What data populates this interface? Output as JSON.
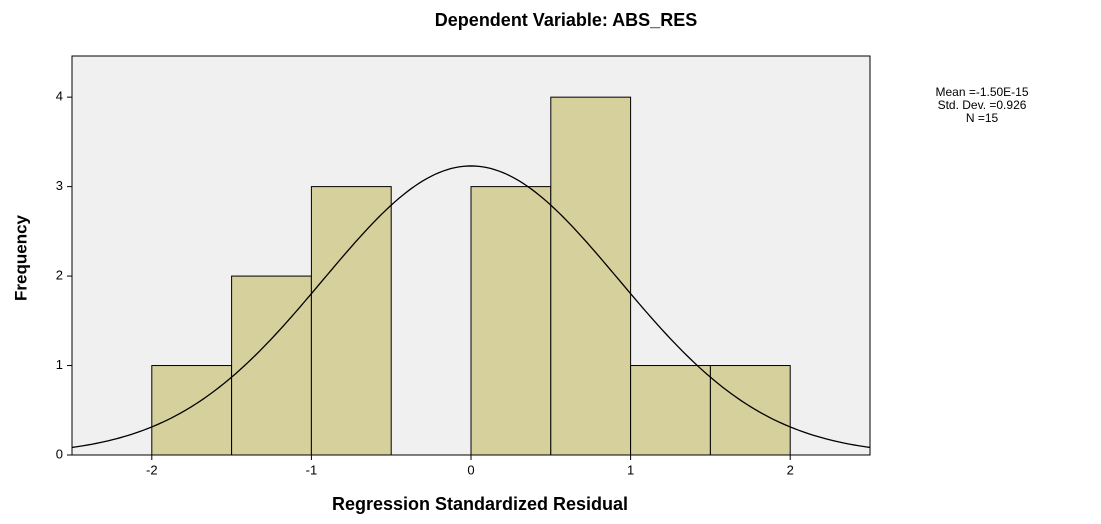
{
  "chart_data": {
    "type": "histogram",
    "title": "Dependent Variable: ABS_RES",
    "xlabel": "Regression Standardized Residual",
    "ylabel": "Frequency",
    "bins": [
      -2,
      -1.5,
      -1,
      -0.5,
      0,
      0.5,
      1,
      1.5,
      2
    ],
    "values": [
      1,
      2,
      3,
      0,
      3,
      4,
      1,
      1
    ],
    "color": "#d6d09c",
    "xlim": [
      -2.5,
      2.5
    ],
    "xticks": [
      -2,
      -1,
      0,
      1,
      2
    ],
    "ylim": [
      0,
      4.46
    ],
    "yticks": [
      0,
      1,
      2,
      3,
      4
    ],
    "normal_curve": {
      "mean": -1.5e-15,
      "sd": 0.926,
      "n": 15
    },
    "stats_text": [
      "Mean =-1.50E-15",
      "Std. Dev. =0.926",
      "N =15"
    ]
  }
}
